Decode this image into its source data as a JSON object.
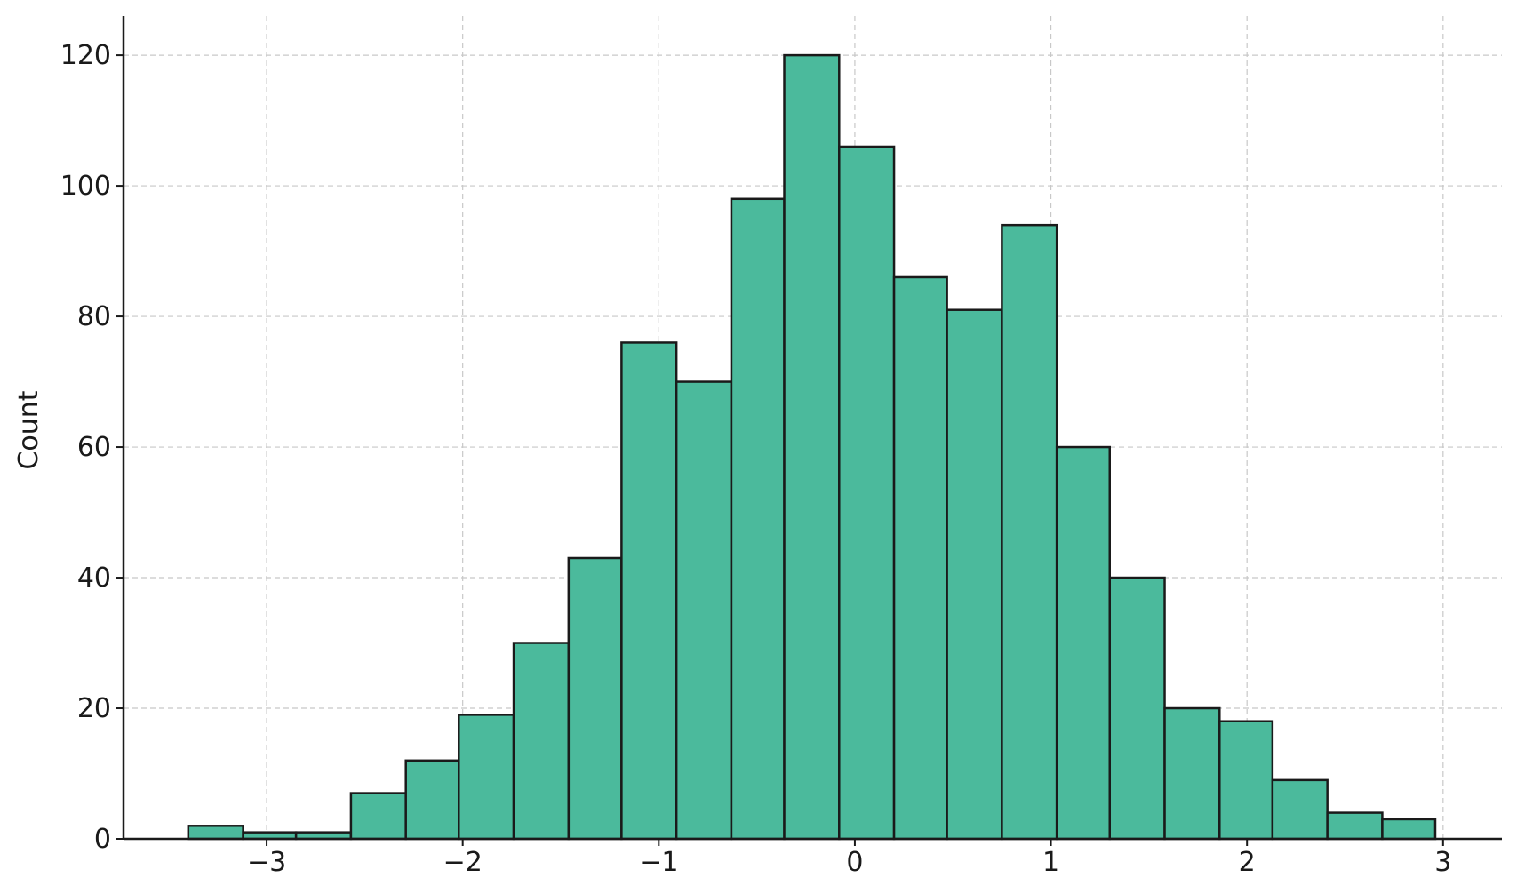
{
  "chart_data": {
    "type": "bar",
    "ylabel": "Count",
    "xlabel": "",
    "title": "",
    "xlim": [
      -3.73,
      3.3
    ],
    "ylim": [
      0,
      126
    ],
    "grid": true,
    "bin_width": 0.277,
    "bins": [
      {
        "x0": -3.4,
        "x1": -3.12,
        "count": 2
      },
      {
        "x0": -3.12,
        "x1": -2.85,
        "count": 1
      },
      {
        "x0": -2.85,
        "x1": -2.57,
        "count": 1
      },
      {
        "x0": -2.57,
        "x1": -2.29,
        "count": 7
      },
      {
        "x0": -2.29,
        "x1": -2.02,
        "count": 12
      },
      {
        "x0": -2.02,
        "x1": -1.74,
        "count": 19
      },
      {
        "x0": -1.74,
        "x1": -1.46,
        "count": 30
      },
      {
        "x0": -1.46,
        "x1": -1.19,
        "count": 43
      },
      {
        "x0": -1.19,
        "x1": -0.91,
        "count": 76
      },
      {
        "x0": -0.91,
        "x1": -0.63,
        "count": 70
      },
      {
        "x0": -0.63,
        "x1": -0.36,
        "count": 98
      },
      {
        "x0": -0.36,
        "x1": -0.08,
        "count": 120
      },
      {
        "x0": -0.08,
        "x1": 0.2,
        "count": 106
      },
      {
        "x0": 0.2,
        "x1": 0.47,
        "count": 86
      },
      {
        "x0": 0.47,
        "x1": 0.75,
        "count": 81
      },
      {
        "x0": 0.75,
        "x1": 1.03,
        "count": 94
      },
      {
        "x0": 1.03,
        "x1": 1.3,
        "count": 60
      },
      {
        "x0": 1.3,
        "x1": 1.58,
        "count": 40
      },
      {
        "x0": 1.58,
        "x1": 1.86,
        "count": 20
      },
      {
        "x0": 1.86,
        "x1": 2.13,
        "count": 18
      },
      {
        "x0": 2.13,
        "x1": 2.41,
        "count": 9
      },
      {
        "x0": 2.41,
        "x1": 2.69,
        "count": 4
      },
      {
        "x0": 2.69,
        "x1": 2.96,
        "count": 3
      }
    ],
    "x_ticks": [
      {
        "value": -3,
        "label": "−3"
      },
      {
        "value": -2,
        "label": "−2"
      },
      {
        "value": -1,
        "label": "−1"
      },
      {
        "value": 0,
        "label": "0"
      },
      {
        "value": 1,
        "label": "1"
      },
      {
        "value": 2,
        "label": "2"
      },
      {
        "value": 3,
        "label": "3"
      }
    ],
    "y_ticks": [
      {
        "value": 0,
        "label": "0"
      },
      {
        "value": 20,
        "label": "20"
      },
      {
        "value": 40,
        "label": "40"
      },
      {
        "value": 60,
        "label": "60"
      },
      {
        "value": 80,
        "label": "80"
      },
      {
        "value": 100,
        "label": "100"
      },
      {
        "value": 120,
        "label": "120"
      }
    ],
    "colors": {
      "bar_fill": "#4bba9c",
      "bar_edge": "#1a1a1a",
      "grid": "#c8c8c8",
      "axis": "#1a1a1a"
    }
  }
}
